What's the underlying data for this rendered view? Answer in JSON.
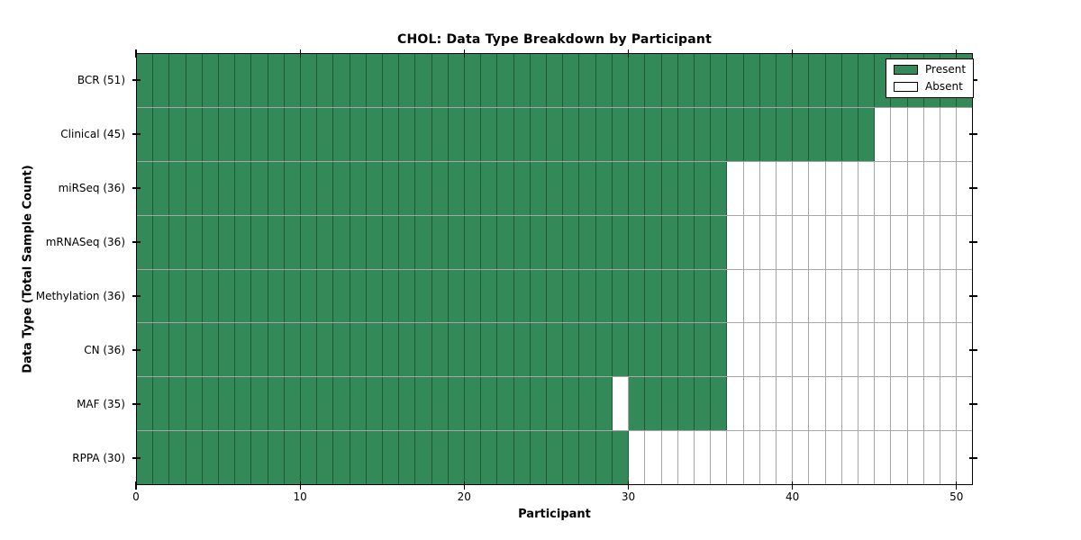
{
  "title": "CHOL: Data Type Breakdown by Participant",
  "colors": {
    "present": "#338a58",
    "absent": "#ffffff",
    "grid_line": "rgba(0,0,0,0.35)",
    "spine": "#000000",
    "legend_border": "#000000"
  },
  "legend": {
    "position": "top-right",
    "items": [
      {
        "label": "Present",
        "color_key": "present"
      },
      {
        "label": "Absent",
        "color_key": "absent"
      }
    ]
  },
  "chart_data": {
    "type": "heatmap",
    "title": "CHOL: Data Type Breakdown by Participant",
    "xlabel": "Participant",
    "ylabel": "Data Type (Total Sample Count)",
    "x_range": [
      0,
      51
    ],
    "x_ticks": [
      0,
      10,
      20,
      30,
      40,
      50
    ],
    "grid": "cell-borders",
    "legend_position": "upper right",
    "legend": [
      "Present",
      "Absent"
    ],
    "categories": [
      "BCR (51)",
      "Clinical (45)",
      "miRSeq (36)",
      "mRNASeq (36)",
      "Methylation (36)",
      "CN (36)",
      "MAF (35)",
      "RPPA (30)"
    ],
    "rows": [
      {
        "name": "BCR",
        "label": "BCR (51)",
        "total": 51,
        "presence": [
          1,
          1,
          1,
          1,
          1,
          1,
          1,
          1,
          1,
          1,
          1,
          1,
          1,
          1,
          1,
          1,
          1,
          1,
          1,
          1,
          1,
          1,
          1,
          1,
          1,
          1,
          1,
          1,
          1,
          1,
          1,
          1,
          1,
          1,
          1,
          1,
          1,
          1,
          1,
          1,
          1,
          1,
          1,
          1,
          1,
          1,
          1,
          1,
          1,
          1,
          1
        ]
      },
      {
        "name": "Clinical",
        "label": "Clinical (45)",
        "total": 45,
        "presence": [
          1,
          1,
          1,
          1,
          1,
          1,
          1,
          1,
          1,
          1,
          1,
          1,
          1,
          1,
          1,
          1,
          1,
          1,
          1,
          1,
          1,
          1,
          1,
          1,
          1,
          1,
          1,
          1,
          1,
          1,
          1,
          1,
          1,
          1,
          1,
          1,
          1,
          1,
          1,
          1,
          1,
          1,
          1,
          1,
          1,
          0,
          0,
          0,
          0,
          0,
          0
        ]
      },
      {
        "name": "miRSeq",
        "label": "miRSeq (36)",
        "total": 36,
        "presence": [
          1,
          1,
          1,
          1,
          1,
          1,
          1,
          1,
          1,
          1,
          1,
          1,
          1,
          1,
          1,
          1,
          1,
          1,
          1,
          1,
          1,
          1,
          1,
          1,
          1,
          1,
          1,
          1,
          1,
          1,
          1,
          1,
          1,
          1,
          1,
          1,
          0,
          0,
          0,
          0,
          0,
          0,
          0,
          0,
          0,
          0,
          0,
          0,
          0,
          0,
          0
        ]
      },
      {
        "name": "mRNASeq",
        "label": "mRNASeq (36)",
        "total": 36,
        "presence": [
          1,
          1,
          1,
          1,
          1,
          1,
          1,
          1,
          1,
          1,
          1,
          1,
          1,
          1,
          1,
          1,
          1,
          1,
          1,
          1,
          1,
          1,
          1,
          1,
          1,
          1,
          1,
          1,
          1,
          1,
          1,
          1,
          1,
          1,
          1,
          1,
          0,
          0,
          0,
          0,
          0,
          0,
          0,
          0,
          0,
          0,
          0,
          0,
          0,
          0,
          0
        ]
      },
      {
        "name": "Methylation",
        "label": "Methylation (36)",
        "total": 36,
        "presence": [
          1,
          1,
          1,
          1,
          1,
          1,
          1,
          1,
          1,
          1,
          1,
          1,
          1,
          1,
          1,
          1,
          1,
          1,
          1,
          1,
          1,
          1,
          1,
          1,
          1,
          1,
          1,
          1,
          1,
          1,
          1,
          1,
          1,
          1,
          1,
          1,
          0,
          0,
          0,
          0,
          0,
          0,
          0,
          0,
          0,
          0,
          0,
          0,
          0,
          0,
          0
        ]
      },
      {
        "name": "CN",
        "label": "CN (36)",
        "total": 36,
        "presence": [
          1,
          1,
          1,
          1,
          1,
          1,
          1,
          1,
          1,
          1,
          1,
          1,
          1,
          1,
          1,
          1,
          1,
          1,
          1,
          1,
          1,
          1,
          1,
          1,
          1,
          1,
          1,
          1,
          1,
          1,
          1,
          1,
          1,
          1,
          1,
          1,
          0,
          0,
          0,
          0,
          0,
          0,
          0,
          0,
          0,
          0,
          0,
          0,
          0,
          0,
          0
        ]
      },
      {
        "name": "MAF",
        "label": "MAF (35)",
        "total": 35,
        "presence": [
          1,
          1,
          1,
          1,
          1,
          1,
          1,
          1,
          1,
          1,
          1,
          1,
          1,
          1,
          1,
          1,
          1,
          1,
          1,
          1,
          1,
          1,
          1,
          1,
          1,
          1,
          1,
          1,
          1,
          0,
          1,
          1,
          1,
          1,
          1,
          1,
          0,
          0,
          0,
          0,
          0,
          0,
          0,
          0,
          0,
          0,
          0,
          0,
          0,
          0,
          0
        ]
      },
      {
        "name": "RPPA",
        "label": "RPPA (30)",
        "total": 30,
        "presence": [
          1,
          1,
          1,
          1,
          1,
          1,
          1,
          1,
          1,
          1,
          1,
          1,
          1,
          1,
          1,
          1,
          1,
          1,
          1,
          1,
          1,
          1,
          1,
          1,
          1,
          1,
          1,
          1,
          1,
          1,
          0,
          0,
          0,
          0,
          0,
          0,
          0,
          0,
          0,
          0,
          0,
          0,
          0,
          0,
          0,
          0,
          0,
          0,
          0,
          0,
          0
        ]
      }
    ]
  }
}
